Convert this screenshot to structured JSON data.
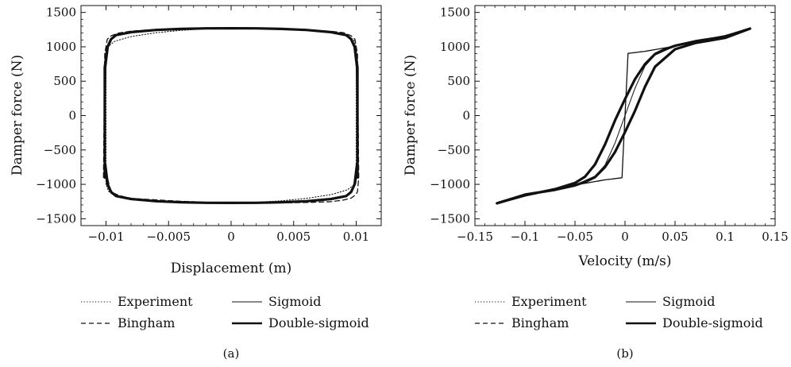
{
  "chart_data": [
    {
      "type": "line",
      "panel_label": "(a)",
      "xlabel": "Displacement (m)",
      "ylabel": "Damper force (N)",
      "xlim": [
        -0.012,
        0.012
      ],
      "ylim": [
        -1600,
        1600
      ],
      "xticks": [
        -0.01,
        -0.005,
        0,
        0.005,
        0.01
      ],
      "xtick_labels": [
        "−0.01",
        "−0.005",
        "0",
        "0.005",
        "0.01"
      ],
      "yticks": [
        -1500,
        -1000,
        -500,
        0,
        500,
        1000,
        1500
      ],
      "ytick_labels": [
        "−1500",
        "−1000",
        "−500",
        "0",
        "500",
        "1000",
        "1500"
      ],
      "grid": false,
      "legend_position": "below",
      "series": [
        {
          "name": "Experiment",
          "style": "dotted",
          "x": [
            -0.01,
            -0.01,
            -0.0098,
            -0.0093,
            -0.008,
            -0.006,
            -0.004,
            -0.002,
            0,
            0.002,
            0.004,
            0.006,
            0.008,
            0.0093,
            0.0098,
            0.01,
            0.01,
            0.01,
            0.0098,
            0.0093,
            0.008,
            0.006,
            0.004,
            0.002,
            0,
            -0.002,
            -0.004,
            -0.006,
            -0.008,
            -0.0093,
            -0.0098,
            -0.01,
            -0.01
          ],
          "y": [
            -1000,
            900,
            1010,
            1080,
            1150,
            1205,
            1240,
            1262,
            1270,
            1265,
            1255,
            1238,
            1210,
            1170,
            1100,
            1000,
            0,
            -900,
            -1010,
            -1080,
            -1150,
            -1205,
            -1240,
            -1262,
            -1270,
            -1265,
            -1255,
            -1238,
            -1210,
            -1170,
            -1100,
            -1000,
            -1000
          ]
        },
        {
          "name": "Bingham",
          "style": "dashed",
          "x": [
            -0.0102,
            -0.0101,
            -0.0099,
            -0.0096,
            -0.009,
            -0.008,
            -0.006,
            -0.004,
            -0.002,
            0,
            0.002,
            0.004,
            0.006,
            0.008,
            0.009,
            0.0096,
            0.0099,
            0.0101,
            0.0102,
            0.0101,
            0.0099,
            0.0096,
            0.009,
            0.008,
            0.006,
            0.004,
            0.002,
            0,
            -0.002,
            -0.004,
            -0.006,
            -0.008,
            -0.009,
            -0.0096,
            -0.0099,
            -0.0101,
            -0.0102
          ],
          "y": [
            -900,
            900,
            1110,
            1160,
            1200,
            1228,
            1252,
            1264,
            1270,
            1271,
            1268,
            1260,
            1247,
            1226,
            1205,
            1160,
            1110,
            900,
            -900,
            -1110,
            -1160,
            -1200,
            -1228,
            -1252,
            -1264,
            -1270,
            -1271,
            -1268,
            -1260,
            -1247,
            -1226,
            -1205,
            -1160,
            -1110,
            -900,
            -900,
            -900
          ]
        },
        {
          "name": "Sigmoid",
          "style": "solid",
          "x": [
            -0.0101,
            -0.01,
            -0.0098,
            -0.0095,
            -0.009,
            -0.008,
            -0.006,
            -0.004,
            -0.002,
            0,
            0.002,
            0.004,
            0.006,
            0.008,
            0.009,
            0.0095,
            0.0098,
            0.01,
            0.0101,
            0.01,
            0.0098,
            0.0095,
            0.009,
            0.008,
            0.006,
            0.004,
            0.002,
            0,
            -0.002,
            -0.004,
            -0.006,
            -0.008,
            -0.009,
            -0.0095,
            -0.0098,
            -0.01,
            -0.0101
          ],
          "y": [
            -800,
            700,
            1000,
            1120,
            1180,
            1215,
            1243,
            1258,
            1266,
            1268,
            1266,
            1258,
            1243,
            1215,
            1180,
            1120,
            1000,
            700,
            -800,
            -700,
            -1000,
            -1120,
            -1180,
            -1215,
            -1243,
            -1258,
            -1266,
            -1268,
            -1266,
            -1258,
            -1243,
            -1215,
            -1180,
            -1120,
            -1000,
            -700,
            -800
          ]
        },
        {
          "name": "Double-sigmoid",
          "style": "thick",
          "x": [
            -0.0101,
            -0.0101,
            -0.0099,
            -0.0096,
            -0.0092,
            -0.008,
            -0.006,
            -0.004,
            -0.002,
            0,
            0.002,
            0.004,
            0.006,
            0.008,
            0.0092,
            0.0096,
            0.0099,
            0.0101,
            0.0101,
            0.0101,
            0.0099,
            0.0096,
            0.0092,
            0.008,
            0.006,
            0.004,
            0.002,
            0,
            -0.002,
            -0.004,
            -0.006,
            -0.008,
            -0.0092,
            -0.0096,
            -0.0099,
            -0.0101,
            -0.0101
          ],
          "y": [
            -900,
            700,
            990,
            1110,
            1170,
            1213,
            1245,
            1260,
            1268,
            1270,
            1268,
            1260,
            1245,
            1213,
            1170,
            1110,
            990,
            700,
            -900,
            -700,
            -990,
            -1110,
            -1170,
            -1213,
            -1245,
            -1260,
            -1268,
            -1270,
            -1268,
            -1260,
            -1245,
            -1213,
            -1170,
            -1110,
            -990,
            -700,
            -900
          ]
        }
      ]
    },
    {
      "type": "line",
      "panel_label": "(b)",
      "xlabel": "Velocity (m/s)",
      "ylabel": "Damper force (N)",
      "xlim": [
        -0.15,
        0.15
      ],
      "ylim": [
        -1600,
        1600
      ],
      "xticks": [
        -0.15,
        -0.1,
        -0.05,
        0,
        0.05,
        0.1,
        0.15
      ],
      "xtick_labels": [
        "−0.15",
        "−0.1",
        "−0.05",
        "0",
        "0.05",
        "0.1",
        "0.15"
      ],
      "yticks": [
        -1500,
        -1000,
        -500,
        0,
        500,
        1000,
        1500
      ],
      "ytick_labels": [
        "−1500",
        "−1000",
        "−500",
        "0",
        "500",
        "1000",
        "1500"
      ],
      "grid": false,
      "legend_position": "below",
      "series": [
        {
          "name": "Experiment",
          "style": "dotted",
          "x": [
            -0.128,
            -0.1,
            -0.07,
            -0.05,
            -0.04,
            -0.03,
            -0.02,
            -0.01,
            0,
            0.01,
            0.02,
            0.03,
            0.04,
            0.05,
            0.07,
            0.1,
            0.125,
            0.1,
            0.07,
            0.05,
            0.03,
            0.02,
            0.01,
            0,
            -0.01,
            -0.02,
            -0.03,
            -0.04,
            -0.05,
            -0.07,
            -0.1,
            -0.128
          ],
          "y": [
            -1275,
            -1150,
            -1060,
            -970,
            -880,
            -700,
            -400,
            -60,
            240,
            520,
            740,
            890,
            960,
            1010,
            1080,
            1150,
            1265,
            1120,
            1050,
            960,
            700,
            400,
            60,
            -240,
            -520,
            -740,
            -890,
            -960,
            -1010,
            -1080,
            -1150,
            -1275
          ]
        },
        {
          "name": "Bingham",
          "style": "dashed",
          "x": [
            -0.125,
            -0.1,
            -0.05,
            -0.02,
            -0.003,
            -0.001,
            0.001,
            0.003,
            0.02,
            0.05,
            0.1,
            0.125,
            0.1,
            0.05,
            0.02,
            0.003,
            0.001,
            -0.001,
            -0.003,
            -0.02,
            -0.05,
            -0.1,
            -0.125
          ],
          "y": [
            -1265,
            -1165,
            -1010,
            -935,
            -905,
            -300,
            300,
            905,
            935,
            1010,
            1165,
            1265,
            1165,
            1010,
            935,
            905,
            300,
            -300,
            -905,
            -935,
            -1010,
            -1165,
            -1265
          ]
        },
        {
          "name": "Sigmoid",
          "style": "solid",
          "x": [
            -0.125,
            -0.1,
            -0.07,
            -0.05,
            -0.03,
            -0.02,
            -0.01,
            0,
            0.01,
            0.02,
            0.03,
            0.05,
            0.07,
            0.1,
            0.125,
            0.1,
            0.07,
            0.05,
            0.03,
            0.02,
            0.01,
            0,
            -0.01,
            -0.02,
            -0.03,
            -0.05,
            -0.07,
            -0.1,
            -0.125
          ],
          "y": [
            -1265,
            -1160,
            -1070,
            -1010,
            -880,
            -720,
            -400,
            0,
            400,
            720,
            880,
            1010,
            1070,
            1160,
            1265,
            1160,
            1070,
            1010,
            880,
            720,
            400,
            0,
            -400,
            -720,
            -880,
            -1010,
            -1070,
            -1160,
            -1265
          ]
        },
        {
          "name": "Double-sigmoid",
          "style": "thick",
          "x": [
            -0.128,
            -0.1,
            -0.07,
            -0.05,
            -0.04,
            -0.03,
            -0.02,
            -0.01,
            0,
            0.01,
            0.02,
            0.03,
            0.04,
            0.05,
            0.07,
            0.1,
            0.125,
            0.1,
            0.07,
            0.05,
            0.03,
            0.02,
            0.01,
            0,
            -0.01,
            -0.02,
            -0.03,
            -0.04,
            -0.05,
            -0.07,
            -0.1,
            -0.128
          ],
          "y": [
            -1275,
            -1160,
            -1070,
            -980,
            -890,
            -710,
            -420,
            -70,
            240,
            530,
            750,
            895,
            965,
            1015,
            1080,
            1150,
            1265,
            1130,
            1055,
            965,
            710,
            420,
            70,
            -240,
            -530,
            -750,
            -895,
            -965,
            -1015,
            -1080,
            -1150,
            -1275
          ]
        }
      ]
    }
  ]
}
